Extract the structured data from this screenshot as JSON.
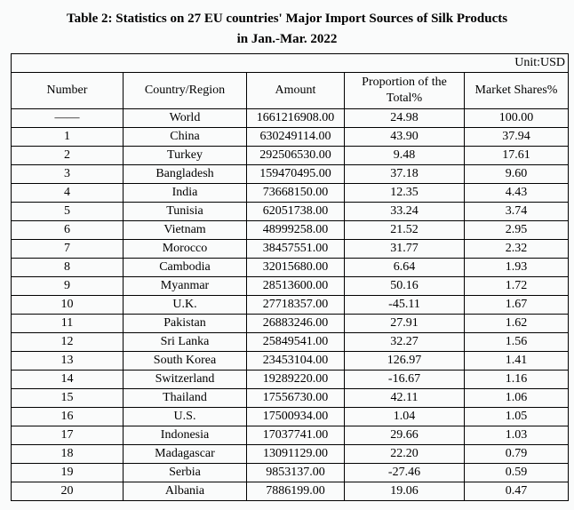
{
  "title_line1": "Table 2: Statistics on 27 EU countries' Major Import Sources of Silk Products",
  "title_line2": "in Jan.-Mar. 2022",
  "unit": "Unit:USD",
  "headers": [
    "Number",
    "Country/Region",
    "Amount",
    "Proportion of the Total%",
    "Market Shares%"
  ],
  "rows": [
    [
      "——",
      "World",
      "1661216908.00",
      "24.98",
      "100.00"
    ],
    [
      "1",
      "China",
      "630249114.00",
      "43.90",
      "37.94"
    ],
    [
      "2",
      "Turkey",
      "292506530.00",
      "9.48",
      "17.61"
    ],
    [
      "3",
      "Bangladesh",
      "159470495.00",
      "37.18",
      "9.60"
    ],
    [
      "4",
      "India",
      "73668150.00",
      "12.35",
      "4.43"
    ],
    [
      "5",
      "Tunisia",
      "62051738.00",
      "33.24",
      "3.74"
    ],
    [
      "6",
      "Vietnam",
      "48999258.00",
      "21.52",
      "2.95"
    ],
    [
      "7",
      "Morocco",
      "38457551.00",
      "31.77",
      "2.32"
    ],
    [
      "8",
      "Cambodia",
      "32015680.00",
      "6.64",
      "1.93"
    ],
    [
      "9",
      "Myanmar",
      "28513600.00",
      "50.16",
      "1.72"
    ],
    [
      "10",
      "U.K.",
      "27718357.00",
      "-45.11",
      "1.67"
    ],
    [
      "11",
      "Pakistan",
      "26883246.00",
      "27.91",
      "1.62"
    ],
    [
      "12",
      "Sri Lanka",
      "25849541.00",
      "32.27",
      "1.56"
    ],
    [
      "13",
      "South Korea",
      "23453104.00",
      "126.97",
      "1.41"
    ],
    [
      "14",
      "Switzerland",
      "19289220.00",
      "-16.67",
      "1.16"
    ],
    [
      "15",
      "Thailand",
      "17556730.00",
      "42.11",
      "1.06"
    ],
    [
      "16",
      "U.S.",
      "17500934.00",
      "1.04",
      "1.05"
    ],
    [
      "17",
      "Indonesia",
      "17037741.00",
      "29.66",
      "1.03"
    ],
    [
      "18",
      "Madagascar",
      "13091129.00",
      "22.20",
      "0.79"
    ],
    [
      "19",
      "Serbia",
      "9853137.00",
      "-27.46",
      "0.59"
    ],
    [
      "20",
      "Albania",
      "7886199.00",
      "19.06",
      "0.47"
    ]
  ]
}
